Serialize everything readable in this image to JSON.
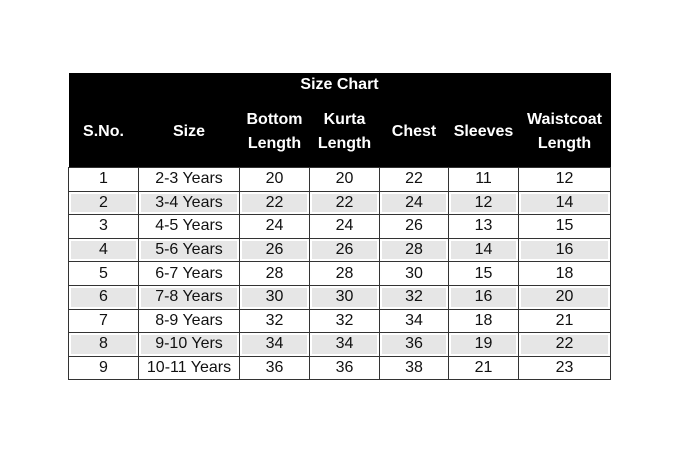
{
  "title": "Size Chart",
  "headers": [
    "S.No.",
    "Size",
    "Bottom Length",
    "Kurta Length",
    "Chest",
    "Sleeves",
    "Waistcoat Length"
  ],
  "rows": [
    [
      "1",
      "2-3 Years",
      "20",
      "20",
      "22",
      "11",
      "12"
    ],
    [
      "2",
      "3-4 Years",
      "22",
      "22",
      "24",
      "12",
      "14"
    ],
    [
      "3",
      "4-5 Years",
      "24",
      "24",
      "26",
      "13",
      "15"
    ],
    [
      "4",
      "5-6 Years",
      "26",
      "26",
      "28",
      "14",
      "16"
    ],
    [
      "5",
      "6-7 Years",
      "28",
      "28",
      "30",
      "15",
      "18"
    ],
    [
      "6",
      "7-8 Years",
      "30",
      "30",
      "32",
      "16",
      "20"
    ],
    [
      "7",
      "8-9 Years",
      "32",
      "32",
      "34",
      "18",
      "21"
    ],
    [
      "8",
      "9-10 Yers",
      "34",
      "34",
      "36",
      "19",
      "22"
    ],
    [
      "9",
      "10-11 Years",
      "36",
      "36",
      "38",
      "21",
      "23"
    ]
  ],
  "colors": {
    "header_bg": "#000000",
    "alt_row_bg": "#e6e6e6"
  }
}
